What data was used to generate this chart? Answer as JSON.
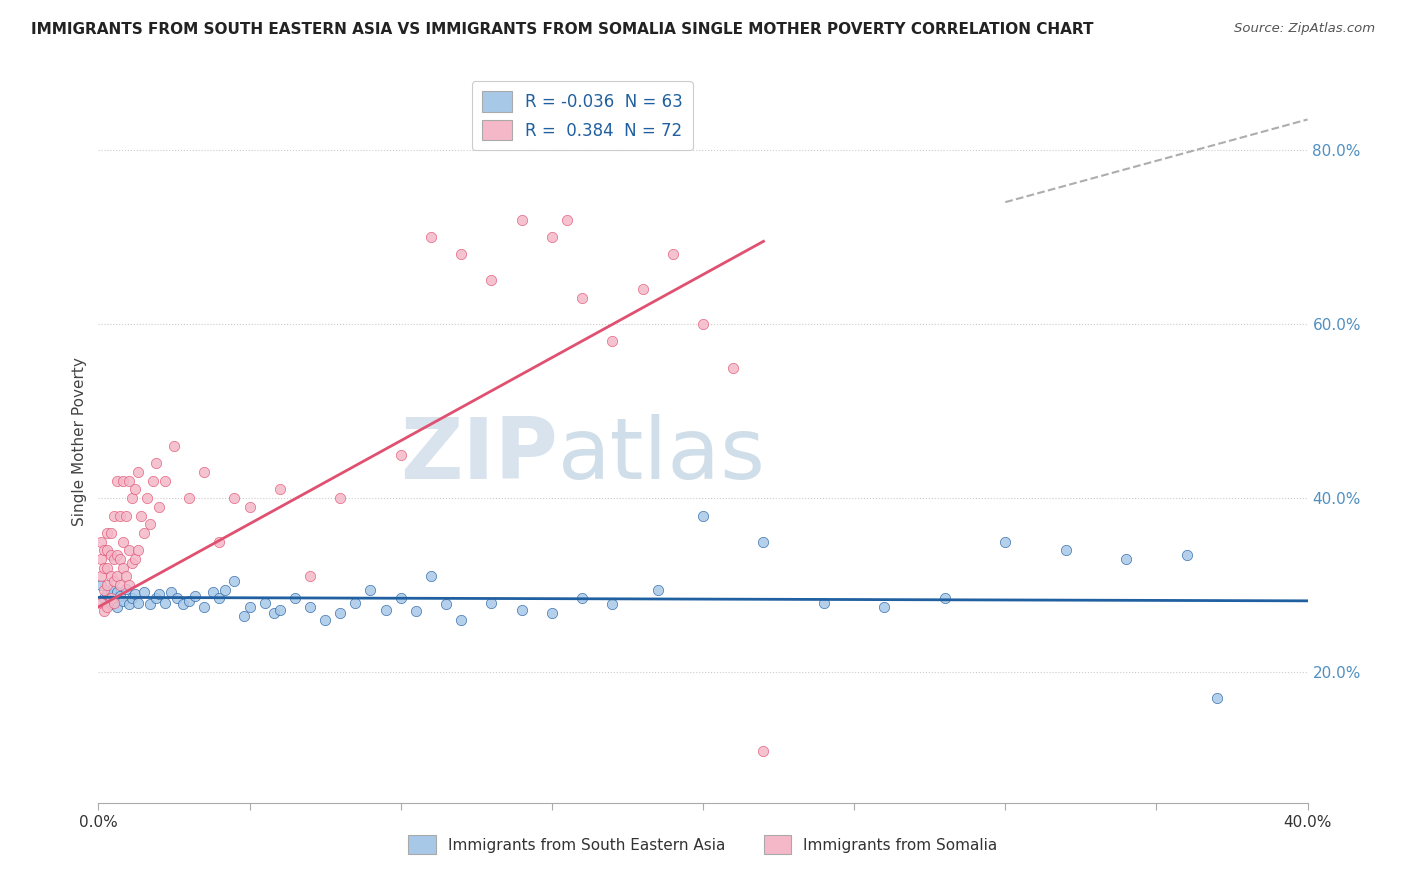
{
  "title": "IMMIGRANTS FROM SOUTH EASTERN ASIA VS IMMIGRANTS FROM SOMALIA SINGLE MOTHER POVERTY CORRELATION CHART",
  "source": "Source: ZipAtlas.com",
  "ylabel": "Single Mother Poverty",
  "xlim": [
    0.0,
    0.4
  ],
  "ylim": [
    0.05,
    0.88
  ],
  "x_ticks": [
    0.0,
    0.05,
    0.1,
    0.15,
    0.2,
    0.25,
    0.3,
    0.35,
    0.4
  ],
  "x_tick_labels": [
    "0.0%",
    "",
    "",
    "",
    "",
    "",
    "",
    "",
    "40.0%"
  ],
  "y_ticks_right": [
    0.2,
    0.4,
    0.6,
    0.8
  ],
  "y_tick_labels_right": [
    "20.0%",
    "40.0%",
    "60.0%",
    "80.0%"
  ],
  "color_blue": "#a8c8e8",
  "color_pink": "#f4b8c8",
  "color_blue_line": "#2060a0",
  "color_pink_line": "#e05070",
  "R_blue": -0.036,
  "N_blue": 63,
  "R_pink": 0.384,
  "N_pink": 72,
  "legend_label_blue": "Immigrants from South Eastern Asia",
  "legend_label_pink": "Immigrants from Somalia",
  "watermark_zip": "ZIP",
  "watermark_atlas": "atlas",
  "blue_line_x": [
    0.0,
    0.4
  ],
  "blue_line_y": [
    0.286,
    0.282
  ],
  "pink_line_x": [
    0.0,
    0.22
  ],
  "pink_line_y": [
    0.275,
    0.695
  ],
  "dash_line_x": [
    0.3,
    0.4
  ],
  "dash_line_y": [
    0.74,
    0.835
  ],
  "blue_x": [
    0.001,
    0.002,
    0.003,
    0.004,
    0.004,
    0.005,
    0.006,
    0.006,
    0.007,
    0.008,
    0.009,
    0.01,
    0.011,
    0.012,
    0.013,
    0.015,
    0.017,
    0.019,
    0.02,
    0.022,
    0.024,
    0.026,
    0.028,
    0.03,
    0.032,
    0.035,
    0.038,
    0.04,
    0.042,
    0.045,
    0.048,
    0.05,
    0.055,
    0.058,
    0.06,
    0.065,
    0.07,
    0.075,
    0.08,
    0.085,
    0.09,
    0.095,
    0.1,
    0.105,
    0.11,
    0.115,
    0.12,
    0.13,
    0.14,
    0.15,
    0.16,
    0.17,
    0.185,
    0.2,
    0.22,
    0.24,
    0.26,
    0.28,
    0.3,
    0.32,
    0.34,
    0.36,
    0.37
  ],
  "blue_y": [
    0.3,
    0.285,
    0.29,
    0.278,
    0.295,
    0.283,
    0.292,
    0.275,
    0.288,
    0.282,
    0.296,
    0.278,
    0.285,
    0.29,
    0.28,
    0.292,
    0.278,
    0.285,
    0.29,
    0.28,
    0.292,
    0.285,
    0.278,
    0.282,
    0.288,
    0.275,
    0.292,
    0.285,
    0.295,
    0.305,
    0.265,
    0.275,
    0.28,
    0.268,
    0.272,
    0.285,
    0.275,
    0.26,
    0.268,
    0.28,
    0.295,
    0.272,
    0.285,
    0.27,
    0.31,
    0.278,
    0.26,
    0.28,
    0.272,
    0.268,
    0.285,
    0.278,
    0.295,
    0.38,
    0.35,
    0.28,
    0.275,
    0.285,
    0.35,
    0.34,
    0.33,
    0.335,
    0.17
  ],
  "pink_x": [
    0.001,
    0.001,
    0.001,
    0.001,
    0.002,
    0.002,
    0.002,
    0.002,
    0.003,
    0.003,
    0.003,
    0.003,
    0.003,
    0.004,
    0.004,
    0.004,
    0.004,
    0.005,
    0.005,
    0.005,
    0.005,
    0.006,
    0.006,
    0.006,
    0.007,
    0.007,
    0.007,
    0.008,
    0.008,
    0.008,
    0.009,
    0.009,
    0.01,
    0.01,
    0.01,
    0.011,
    0.011,
    0.012,
    0.012,
    0.013,
    0.013,
    0.014,
    0.015,
    0.016,
    0.017,
    0.018,
    0.019,
    0.02,
    0.022,
    0.025,
    0.03,
    0.035,
    0.04,
    0.045,
    0.05,
    0.06,
    0.07,
    0.08,
    0.1,
    0.11,
    0.12,
    0.13,
    0.14,
    0.15,
    0.155,
    0.16,
    0.17,
    0.18,
    0.19,
    0.2,
    0.21,
    0.22
  ],
  "pink_y": [
    0.28,
    0.31,
    0.33,
    0.35,
    0.27,
    0.295,
    0.32,
    0.34,
    0.275,
    0.3,
    0.32,
    0.34,
    0.36,
    0.285,
    0.31,
    0.335,
    0.36,
    0.28,
    0.305,
    0.33,
    0.38,
    0.31,
    0.335,
    0.42,
    0.3,
    0.33,
    0.38,
    0.32,
    0.35,
    0.42,
    0.31,
    0.38,
    0.3,
    0.34,
    0.42,
    0.325,
    0.4,
    0.33,
    0.41,
    0.34,
    0.43,
    0.38,
    0.36,
    0.4,
    0.37,
    0.42,
    0.44,
    0.39,
    0.42,
    0.46,
    0.4,
    0.43,
    0.35,
    0.4,
    0.39,
    0.41,
    0.31,
    0.4,
    0.45,
    0.7,
    0.68,
    0.65,
    0.72,
    0.7,
    0.72,
    0.63,
    0.58,
    0.64,
    0.68,
    0.6,
    0.55,
    0.11
  ]
}
